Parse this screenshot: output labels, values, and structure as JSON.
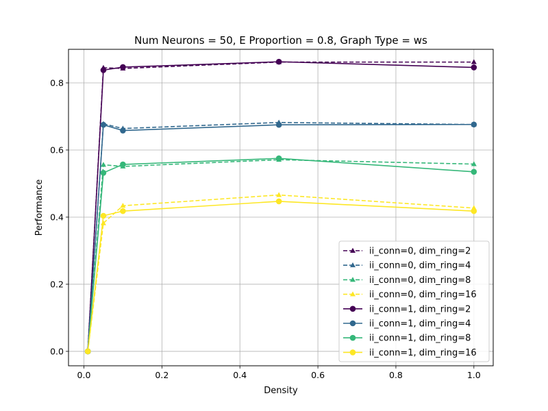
{
  "chart_data": {
    "type": "line",
    "title": "Num Neurons = 50, E Proportion = 0.8, Graph Type = ws",
    "xlabel": "Density",
    "ylabel": "Performance",
    "xlim": [
      -0.0395,
      1.0495
    ],
    "ylim": [
      -0.043,
      0.9
    ],
    "xticks": [
      0.0,
      0.2,
      0.4,
      0.6,
      0.8,
      1.0
    ],
    "xtick_labels": [
      "0.0",
      "0.2",
      "0.4",
      "0.6",
      "0.8",
      "1.0"
    ],
    "yticks": [
      0.0,
      0.2,
      0.4,
      0.6,
      0.8
    ],
    "ytick_labels": [
      "0.0",
      "0.2",
      "0.4",
      "0.6",
      "0.8"
    ],
    "grid": true,
    "legend_position": "lower-right",
    "x": [
      0.01,
      0.05,
      0.1,
      0.5,
      1.0
    ],
    "series": [
      {
        "name": "ii_conn=0, dim_ring=2",
        "color": "#440154",
        "linestyle": "dashed",
        "marker": "triangle",
        "values": [
          0.0,
          0.845,
          0.843,
          0.862,
          0.862
        ]
      },
      {
        "name": "ii_conn=0, dim_ring=4",
        "color": "#31688e",
        "linestyle": "dashed",
        "marker": "triangle",
        "values": [
          0.0,
          0.678,
          0.664,
          0.682,
          0.676
        ]
      },
      {
        "name": "ii_conn=0, dim_ring=8",
        "color": "#35b779",
        "linestyle": "dashed",
        "marker": "triangle",
        "values": [
          0.0,
          0.556,
          0.551,
          0.571,
          0.558
        ]
      },
      {
        "name": "ii_conn=0, dim_ring=16",
        "color": "#fde725",
        "linestyle": "dashed",
        "marker": "triangle",
        "values": [
          0.0,
          0.382,
          0.434,
          0.466,
          0.427
        ]
      },
      {
        "name": "ii_conn=1, dim_ring=2",
        "color": "#440154",
        "linestyle": "solid",
        "marker": "circle",
        "values": [
          0.0,
          0.838,
          0.847,
          0.863,
          0.846
        ]
      },
      {
        "name": "ii_conn=1, dim_ring=4",
        "color": "#31688e",
        "linestyle": "solid",
        "marker": "circle",
        "values": [
          0.0,
          0.675,
          0.658,
          0.675,
          0.676
        ]
      },
      {
        "name": "ii_conn=1, dim_ring=8",
        "color": "#35b779",
        "linestyle": "solid",
        "marker": "circle",
        "values": [
          0.0,
          0.532,
          0.557,
          0.575,
          0.535
        ]
      },
      {
        "name": "ii_conn=1, dim_ring=16",
        "color": "#fde725",
        "linestyle": "solid",
        "marker": "circle",
        "values": [
          0.0,
          0.404,
          0.418,
          0.447,
          0.418
        ]
      }
    ]
  }
}
